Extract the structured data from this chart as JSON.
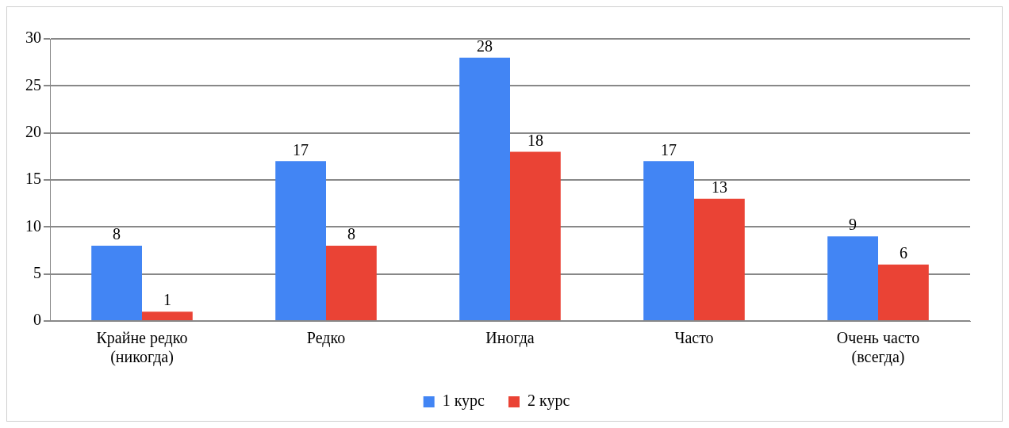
{
  "chart_data": {
    "type": "bar",
    "categories": [
      "Крайне редко (никогда)",
      "Редко",
      "Иногда",
      "Часто",
      "Очень часто (всегда)"
    ],
    "series": [
      {
        "name": "1 курс",
        "color": "#4285f4",
        "values": [
          8,
          17,
          28,
          17,
          9
        ]
      },
      {
        "name": "2 курс",
        "color": "#ea4335",
        "values": [
          1,
          8,
          18,
          13,
          6
        ]
      }
    ],
    "ylim": [
      0,
      30
    ],
    "yticks": [
      0,
      5,
      10,
      15,
      20,
      25,
      30
    ],
    "grid": "y",
    "legend": "bottom",
    "data_labels": true
  }
}
